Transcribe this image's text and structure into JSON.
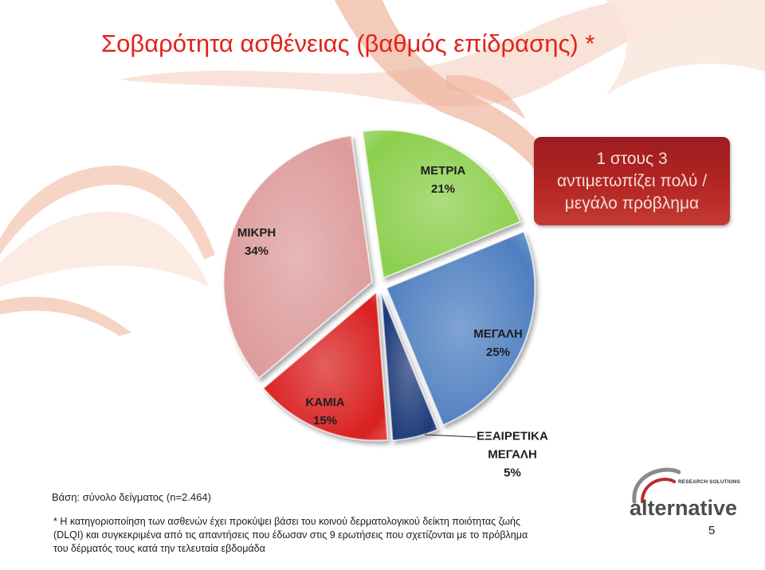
{
  "title": "Σοβαρότητα ασθένειας (βαθμός επίδρασης) *",
  "colors": {
    "title": "#e2231a",
    "callout_bg": "#b32624",
    "callout_text": "#f5ddd6"
  },
  "callout": {
    "lines": [
      "1 στους 3",
      "αντιμετωπίζει πολύ /",
      "μεγάλο πρόβλημα"
    ]
  },
  "chart_data": {
    "type": "pie",
    "categories": [
      "ΜΕΤΡΙΑ",
      "ΜΕΓΑΛΗ",
      "ΕΞΑΙΡΕΤΙΚΑ ΜΕΓΑΛΗ",
      "ΚΑΜΙΑ",
      "ΜΙΚΡΗ"
    ],
    "values": [
      21,
      25,
      5,
      15,
      34
    ],
    "value_labels": [
      "21%",
      "25%",
      "5%",
      "15%",
      "34%"
    ],
    "colors": [
      "#8ccf4d",
      "#4f7fc0",
      "#1c3a78",
      "#d91f1f",
      "#dd9b9b"
    ],
    "exploded": true,
    "legend": "none"
  },
  "base_note": "Βάση: σύνολο δείγματος (n=2.464)",
  "footnote_lines": [
    "* Η κατηγοριοποίηση των ασθενών έχει προκύψει βάσει του κοινού δερματολογικού δείκτη ποιότητας ζωής",
    "(DLQI) και συγκεκριμένα από τις απαντήσεις που έδωσαν στις 9 ερωτήσεις που σχετίζονται με το πρόβλημα",
    "του δέρματός τους κατά την τελευταία εβδομάδα"
  ],
  "logo": {
    "mark_icon": "swirl-icon",
    "tagline": "RESEARCH SOLUTIONS",
    "wordmark": "alternative"
  },
  "page_number": "5"
}
